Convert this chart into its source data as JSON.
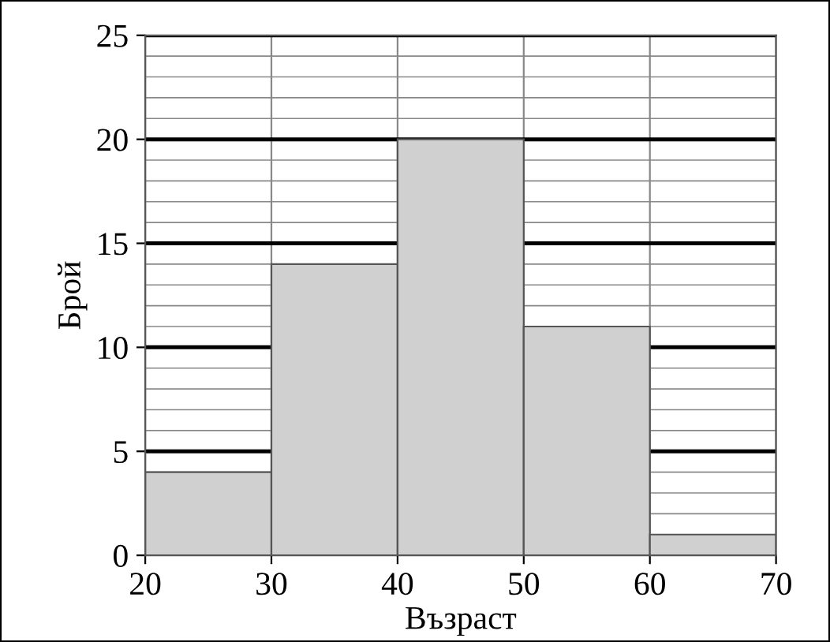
{
  "chart_data": {
    "type": "histogram",
    "xlabel": "Възраст",
    "ylabel": "Брой",
    "bins": [
      20,
      30,
      40,
      50,
      60,
      70
    ],
    "values": [
      4,
      14,
      20,
      11,
      1
    ],
    "color": "#d0d0d0",
    "xlim": [
      20,
      70
    ],
    "xticks": [
      20,
      30,
      40,
      50,
      60,
      70
    ],
    "ylim": [
      0,
      25
    ],
    "yticks": [
      0,
      5,
      10,
      15,
      20,
      25
    ],
    "grid": true
  }
}
